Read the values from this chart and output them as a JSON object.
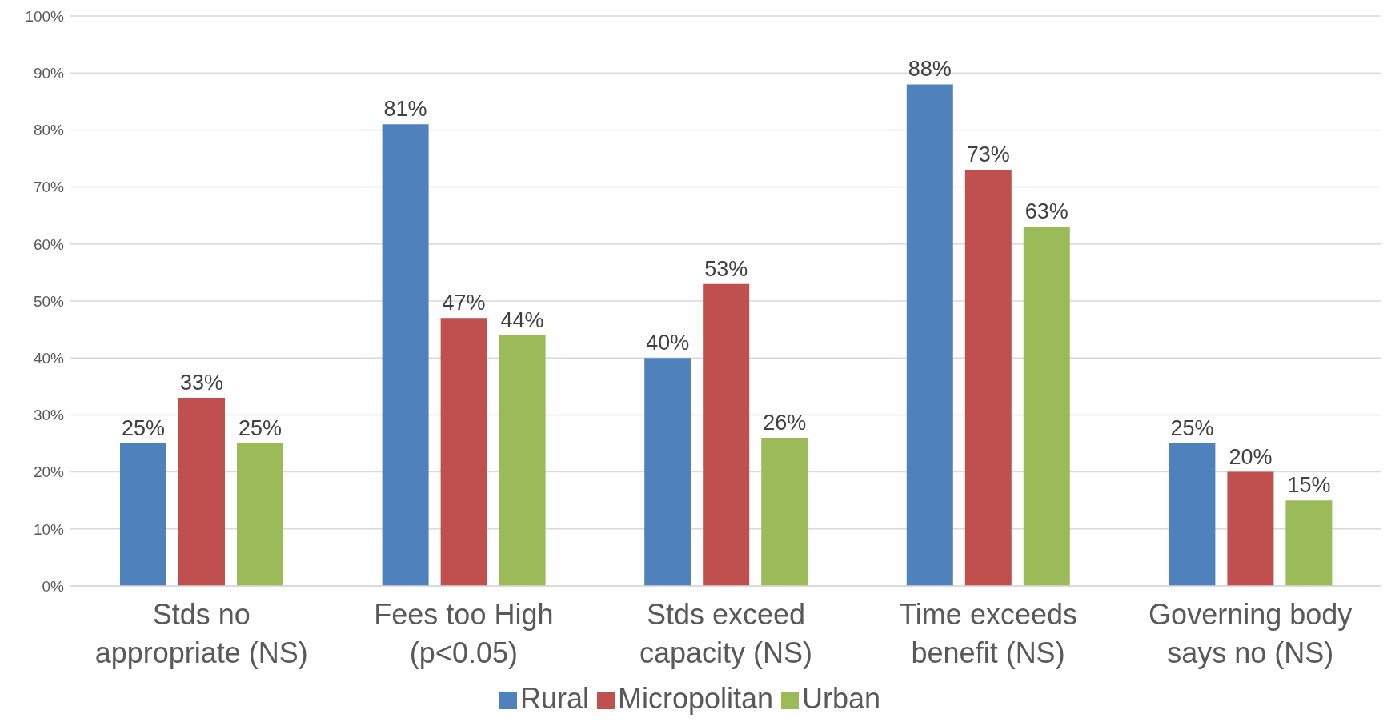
{
  "chart_data": {
    "type": "bar",
    "categories": [
      "Stds no appropriate (NS)",
      "Fees too High (p<0.05)",
      "Stds exceed capacity (NS)",
      "Time exceeds benefit (NS)",
      "Governing body says no (NS)"
    ],
    "series": [
      {
        "name": "Rural",
        "color": "#4f81bd",
        "values": [
          25,
          81,
          40,
          88,
          25
        ],
        "value_labels": [
          "25%",
          "81%",
          "40%",
          "88%",
          "25%"
        ]
      },
      {
        "name": "Micropolitan",
        "color": "#c0504d",
        "values": [
          33,
          47,
          53,
          73,
          20
        ],
        "value_labels": [
          "33%",
          "47%",
          "53%",
          "73%",
          "20%"
        ]
      },
      {
        "name": "Urban",
        "color": "#9bbb59",
        "values": [
          25,
          44,
          26,
          63,
          15
        ],
        "value_labels": [
          "25%",
          "44%",
          "26%",
          "63%",
          "15%"
        ]
      }
    ],
    "ylim": [
      0,
      100
    ],
    "yticks": [
      {
        "value": 0,
        "label": "0%"
      },
      {
        "value": 10,
        "label": "10%"
      },
      {
        "value": 20,
        "label": "20%"
      },
      {
        "value": 30,
        "label": "30%"
      },
      {
        "value": 40,
        "label": "40%"
      },
      {
        "value": 50,
        "label": "50%"
      },
      {
        "value": 60,
        "label": "60%"
      },
      {
        "value": 70,
        "label": "70%"
      },
      {
        "value": 80,
        "label": "80%"
      },
      {
        "value": 90,
        "label": "90%"
      },
      {
        "value": 100,
        "label": "100%"
      }
    ],
    "grid": "y",
    "legend": "bottom"
  }
}
